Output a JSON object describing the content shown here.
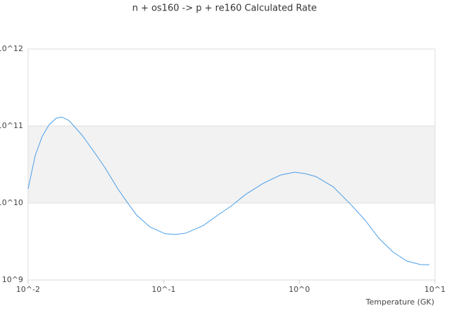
{
  "chart_data": {
    "type": "line",
    "title": "n + os160 -> p + re160 Calculated Rate",
    "x_label": "Temperature (GK)",
    "x": [
      0.01,
      0.0113,
      0.0127,
      0.0143,
      0.0161,
      0.0177,
      0.02,
      0.025,
      0.031,
      0.037,
      0.046,
      0.053,
      0.063,
      0.079,
      0.102,
      0.122,
      0.146,
      0.196,
      0.249,
      0.316,
      0.401,
      0.541,
      0.728,
      0.925,
      1.1,
      1.32,
      1.78,
      2.39,
      3.04,
      3.85,
      4.9,
      6.21,
      7.89,
      9.1
    ],
    "series": [
      {
        "color": "#4a9ee8",
        "values": [
          15200000000,
          41500000000,
          73000000000,
          104000000000,
          126000000000,
          131000000000,
          118000000000,
          76000000000,
          45000000000,
          28500000000,
          15200000000,
          10600000000,
          7000000000,
          4900000000,
          4000000000,
          3900000000,
          4070000000,
          5100000000,
          6900000000,
          9200000000,
          12900000000,
          18000000000,
          23100000000,
          25100000000,
          24100000000,
          22100000000,
          16200000000,
          9600000000,
          6050000000,
          3500000000,
          2310000000,
          1760000000,
          1580000000,
          1580000000
        ]
      }
    ],
    "xscale": "log",
    "yscale": "log",
    "xlim": [
      0.01,
      10
    ],
    "ylim": [
      1000000000,
      1000000000000
    ],
    "xticks": [
      {
        "value": 0.01,
        "label": "10^-2"
      },
      {
        "value": 0.1,
        "label": "10^-1"
      },
      {
        "value": 1,
        "label": "10^0"
      },
      {
        "value": 10,
        "label": "10^1"
      }
    ],
    "yticks": [
      {
        "value": 1000000000,
        "label": "10^9"
      },
      {
        "value": 10000000000,
        "label": "10^10"
      },
      {
        "value": 100000000000,
        "label": "10^11"
      },
      {
        "value": 1000000000000,
        "label": "10^12"
      }
    ],
    "grid": true,
    "bands": true
  }
}
